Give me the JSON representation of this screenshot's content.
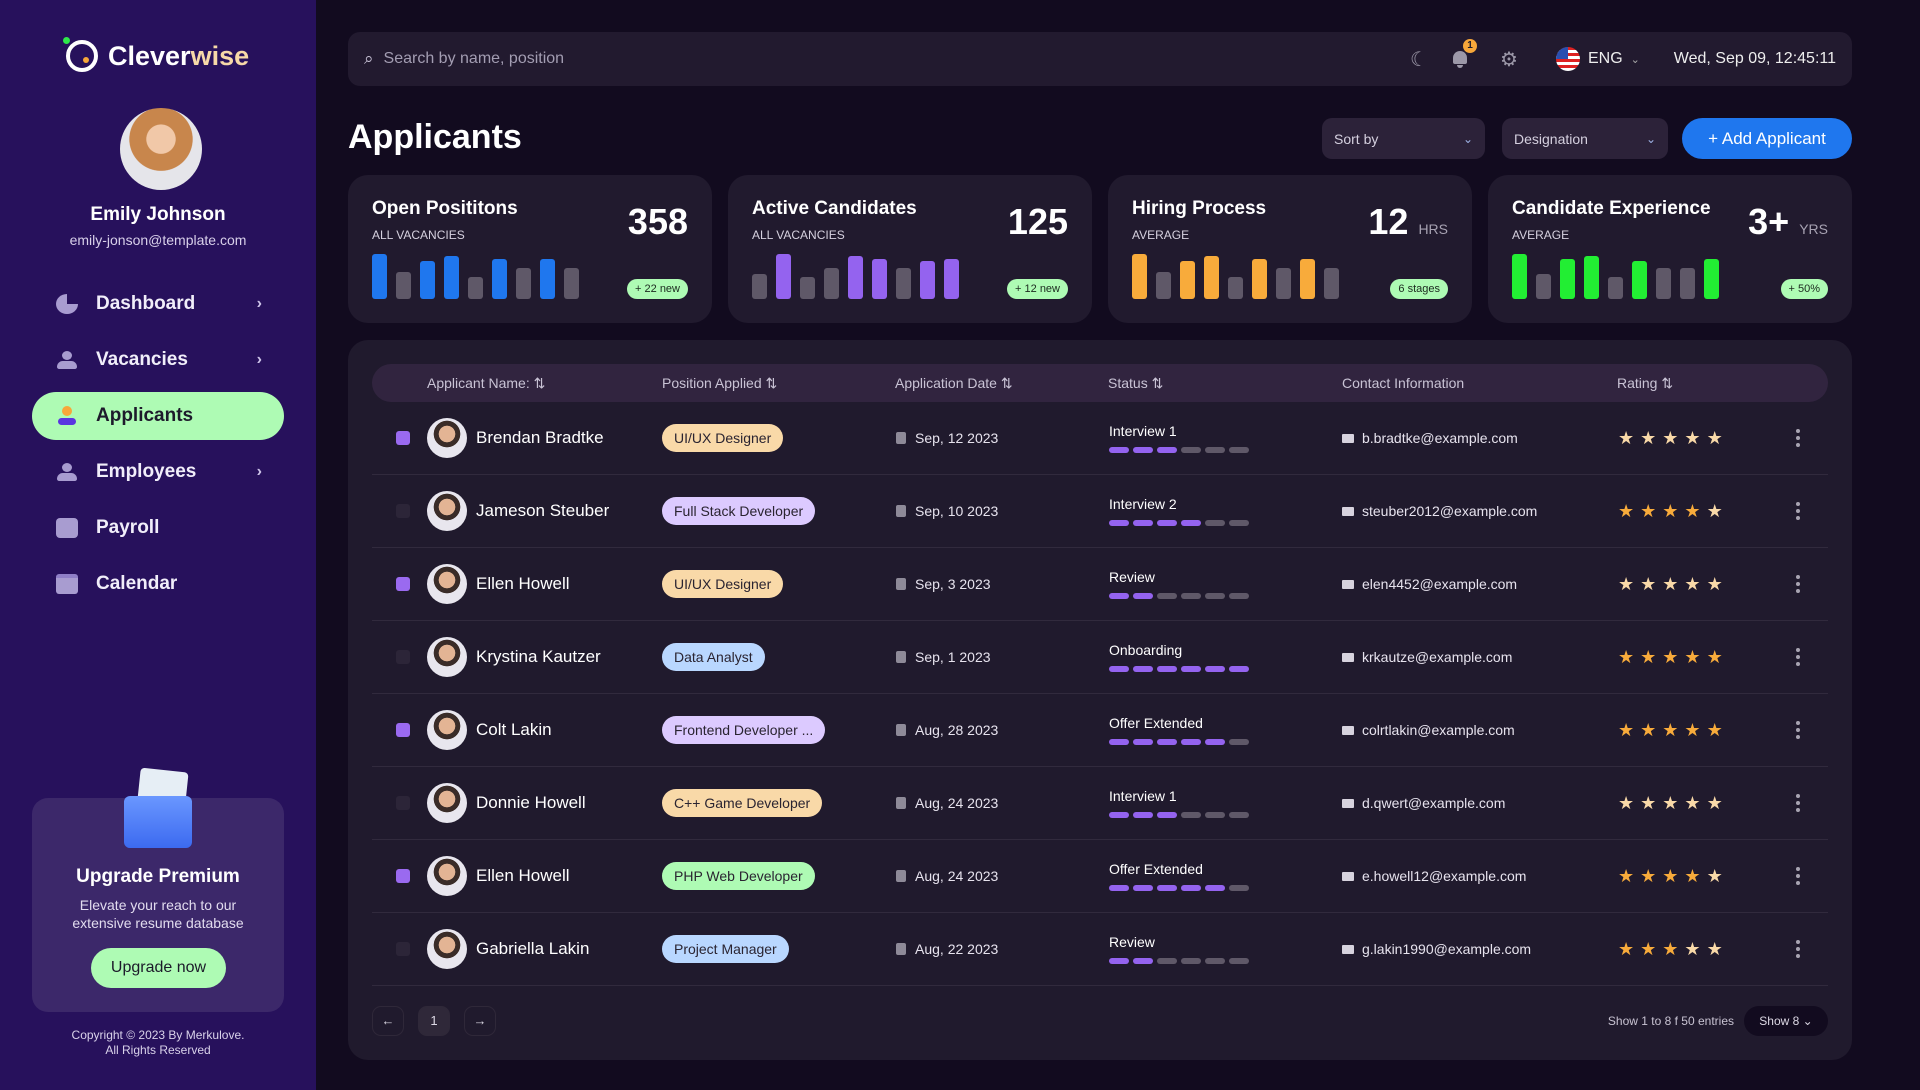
{
  "brand": {
    "name_a": "Clever",
    "name_b": "wise"
  },
  "user": {
    "name": "Emily Johnson",
    "email": "emily-jonson@template.com"
  },
  "nav": [
    {
      "label": "Dashboard",
      "icon": "pie-chart-icon",
      "glyph": "◔",
      "chevron": true,
      "active": false
    },
    {
      "label": "Vacancies",
      "icon": "users-icon",
      "glyph": "👥",
      "chevron": true,
      "active": false
    },
    {
      "label": "Applicants",
      "icon": "user-icon",
      "glyph": "●",
      "chevron": false,
      "active": true
    },
    {
      "label": "Employees",
      "icon": "users-icon",
      "glyph": "👥",
      "chevron": true,
      "active": false
    },
    {
      "label": "Payroll",
      "icon": "wallet-icon",
      "glyph": "▣",
      "chevron": false,
      "active": false
    },
    {
      "label": "Calendar",
      "icon": "calendar-icon",
      "glyph": "▦",
      "chevron": false,
      "active": false
    }
  ],
  "promo": {
    "title": "Upgrade Premium",
    "text": "Elevate your reach to our extensive resume database",
    "button": "Upgrade now"
  },
  "copyright": {
    "line1": "Copyright © 2023 By Merkulove.",
    "line2": "All Rights Reserved"
  },
  "topbar": {
    "search_placeholder": "Search by name, position",
    "notifications": "1",
    "language": "ENG",
    "datetime": "Wed, Sep 09, 12:45:11"
  },
  "page": {
    "title": "Applicants",
    "sort_label": "Sort by",
    "designation_label": "Designation",
    "add_button": "+ Add Applicant"
  },
  "colors": {
    "blue": "#1f77ee",
    "purple": "#9463ef",
    "orange": "#f8ab3b",
    "green": "#22ee33",
    "inactive": "#5f5868",
    "accent_green": "#aefbb4"
  },
  "cards": [
    {
      "title": "Open Posititons",
      "subtitle": "ALL VACANCIES",
      "value": "358",
      "unit": "",
      "pill": "+ 22 new",
      "color": "#1f77ee",
      "bars": [
        1,
        0.6,
        0.85,
        0.95,
        0.5,
        0.9,
        0.68,
        0.9,
        0.68
      ],
      "highlight": [
        true,
        false,
        true,
        true,
        false,
        true,
        false,
        true,
        false
      ]
    },
    {
      "title": "Active Candidates",
      "subtitle": "ALL VACANCIES",
      "value": "125",
      "unit": "",
      "pill": "+ 12 new",
      "color": "#9463ef",
      "bars": [
        0.55,
        1,
        0.5,
        0.68,
        0.95,
        0.9,
        0.68,
        0.85,
        0.9
      ],
      "highlight": [
        false,
        true,
        false,
        false,
        true,
        true,
        false,
        true,
        true
      ]
    },
    {
      "title": "Hiring Process",
      "subtitle": "AVERAGE",
      "value": "12",
      "unit": "HRS",
      "pill": "6 stages",
      "color": "#f8ab3b",
      "bars": [
        1,
        0.6,
        0.85,
        0.95,
        0.5,
        0.9,
        0.68,
        0.9,
        0.68
      ],
      "highlight": [
        true,
        false,
        true,
        true,
        false,
        true,
        false,
        true,
        false
      ]
    },
    {
      "title": "Candidate Experience",
      "subtitle": "AVERAGE",
      "value": "3+",
      "unit": "YRS",
      "pill": "+ 50%",
      "color": "#22ee33",
      "bars": [
        1,
        0.55,
        0.9,
        0.95,
        0.5,
        0.85,
        0.68,
        0.68,
        0.9
      ],
      "highlight": [
        true,
        false,
        true,
        true,
        false,
        true,
        false,
        false,
        true
      ]
    }
  ],
  "table": {
    "headers": [
      "Applicant Name:",
      "Position Applied",
      "Application Date",
      "Status",
      "Contact Information",
      "Rating"
    ],
    "rows": [
      {
        "checked": true,
        "name": "Brendan Bradtke",
        "position": "UI/UX Designer",
        "tag_color": "#f9d9a8",
        "date": "Sep, 12 2023",
        "status": "Interview 1",
        "progress": 3,
        "email": "b.bradtke@example.com",
        "rating": 0
      },
      {
        "checked": false,
        "name": "Jameson Steuber",
        "position": "Full Stack Developer",
        "tag_color": "#dccaff",
        "date": "Sep, 10 2023",
        "status": "Interview 2",
        "progress": 4,
        "email": "steuber2012@example.com",
        "rating": 4
      },
      {
        "checked": true,
        "name": "Ellen Howell",
        "position": "UI/UX Designer",
        "tag_color": "#f9d9a8",
        "date": "Sep, 3 2023",
        "status": "Review",
        "progress": 2,
        "email": "elen4452@example.com",
        "rating": 0
      },
      {
        "checked": false,
        "name": "Krystina Kautzer",
        "position": "Data Analyst",
        "tag_color": "#b9d7ff",
        "date": "Sep, 1 2023",
        "status": "Onboarding",
        "progress": 6,
        "email": "krkautze@example.com",
        "rating": 5
      },
      {
        "checked": true,
        "name": "Colt Lakin",
        "position": "Frontend Developer ...",
        "tag_color": "#dccaff",
        "date": "Aug, 28 2023",
        "status": "Offer Extended",
        "progress": 5,
        "email": "colrtlakin@example.com",
        "rating": 5
      },
      {
        "checked": false,
        "name": "Donnie Howell",
        "position": "C++ Game Developer",
        "tag_color": "#f9d9a8",
        "date": "Aug, 24 2023",
        "status": "Interview 1",
        "progress": 3,
        "email": "d.qwert@example.com",
        "rating": 0
      },
      {
        "checked": true,
        "name": "Ellen Howell",
        "position": "PHP Web Developer",
        "tag_color": "#aefbb4",
        "date": "Aug, 24 2023",
        "status": "Offer Extended",
        "progress": 5,
        "email": "e.howell12@example.com",
        "rating": 4
      },
      {
        "checked": false,
        "name": "Gabriella Lakin",
        "position": "Project Manager",
        "tag_color": "#b9d7ff",
        "date": "Aug, 22 2023",
        "status": "Review",
        "progress": 2,
        "email": "g.lakin1990@example.com",
        "rating": 3
      }
    ],
    "progress_total": 6
  },
  "pagination": {
    "current": "1",
    "entries": "Show 1 to 8 f 50 entries",
    "show": "Show 8"
  }
}
